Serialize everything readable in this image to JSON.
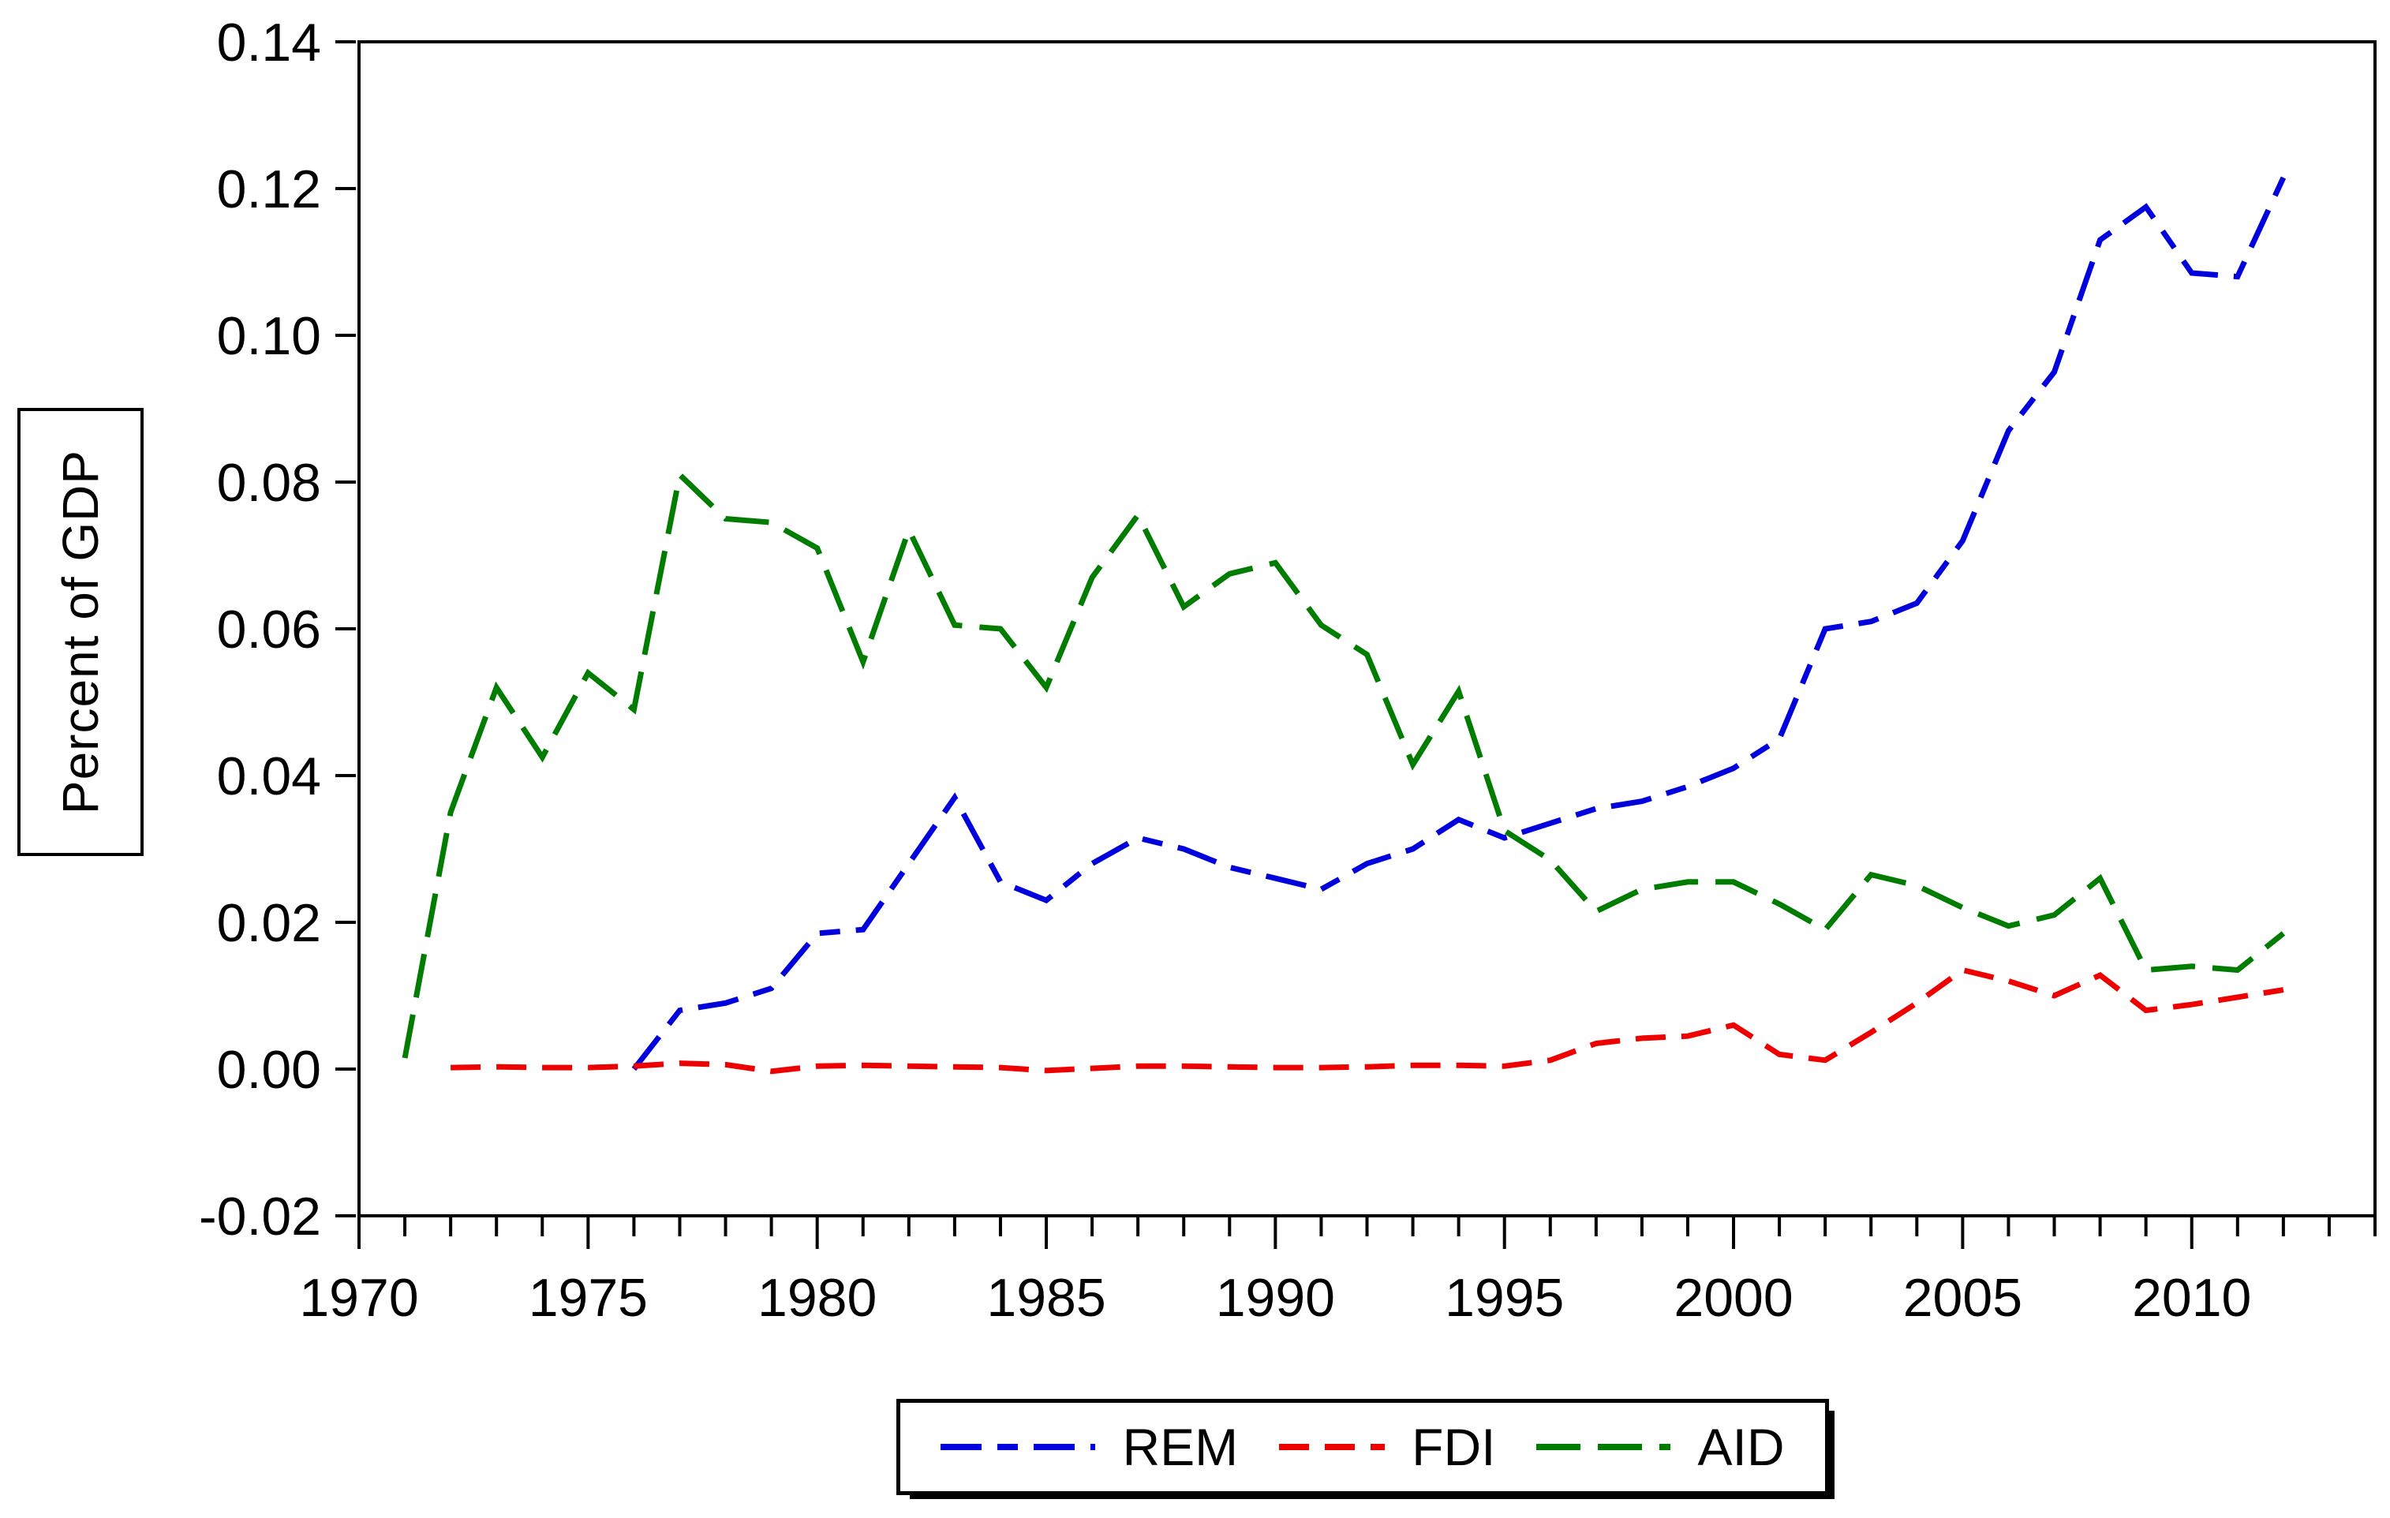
{
  "figure": {
    "background": "#ffffff",
    "frame_color": "#000000"
  },
  "y_axis_title": "Percent of GDP",
  "legend": {
    "position": "bottom",
    "items": [
      {
        "id": "rem",
        "label": "REM",
        "color": "#0000dd"
      },
      {
        "id": "fdi",
        "label": "FDI",
        "color": "#ee0000"
      },
      {
        "id": "aid",
        "label": "AID",
        "color": "#007d00"
      }
    ]
  },
  "chart_data": {
    "type": "line",
    "title": "",
    "xlabel": "",
    "ylabel": "Percent of GDP",
    "xlim": [
      1970,
      2014
    ],
    "ylim": [
      -0.02,
      0.14
    ],
    "grid": false,
    "legend_position": "bottom",
    "x_major_ticks": [
      1970,
      1975,
      1980,
      1985,
      1990,
      1995,
      2000,
      2005,
      2010
    ],
    "x_major_tick_labels": [
      "1970",
      "1975",
      "1980",
      "1985",
      "1990",
      "1995",
      "2000",
      "2005",
      "2010"
    ],
    "x_minor_tick_step": 1,
    "y_ticks": [
      -0.02,
      0.0,
      0.02,
      0.04,
      0.06,
      0.08,
      0.1,
      0.12,
      0.14
    ],
    "y_tick_labels": [
      "-0.02",
      "0.00",
      "0.02",
      "0.04",
      "0.06",
      "0.08",
      "0.10",
      "0.12",
      "0.14"
    ],
    "series": [
      {
        "name": "REM",
        "color": "#0000dd",
        "dash_pattern": [
          52,
          20,
          26,
          20
        ],
        "x_start": 1976,
        "x": [
          1976,
          1977,
          1978,
          1979,
          1980,
          1981,
          1982,
          1983,
          1984,
          1985,
          1986,
          1987,
          1988,
          1989,
          1990,
          1991,
          1992,
          1993,
          1994,
          1995,
          1996,
          1997,
          1998,
          1999,
          2000,
          2001,
          2002,
          2003,
          2004,
          2005,
          2006,
          2007,
          2008,
          2009,
          2010,
          2011,
          2012
        ],
        "y": [
          0.0,
          0.008,
          0.009,
          0.011,
          0.0185,
          0.019,
          0.028,
          0.037,
          0.0255,
          0.023,
          0.028,
          0.0315,
          0.03,
          0.0275,
          0.026,
          0.0245,
          0.028,
          0.03,
          0.034,
          0.0315,
          0.0335,
          0.0355,
          0.0365,
          0.0385,
          0.041,
          0.045,
          0.06,
          0.061,
          0.0635,
          0.072,
          0.087,
          0.095,
          0.113,
          0.1175,
          0.1085,
          0.108,
          0.1215
        ]
      },
      {
        "name": "FDI",
        "color": "#ee0000",
        "dash_pattern": [
          38,
          20
        ],
        "x_start": 1972,
        "x": [
          1972,
          1973,
          1974,
          1975,
          1976,
          1977,
          1978,
          1979,
          1980,
          1981,
          1982,
          1983,
          1984,
          1985,
          1986,
          1987,
          1988,
          1989,
          1990,
          1991,
          1992,
          1993,
          1994,
          1995,
          1996,
          1997,
          1998,
          1999,
          2000,
          2001,
          2002,
          2003,
          2004,
          2005,
          2006,
          2007,
          2008,
          2009,
          2010,
          2011,
          2012
        ],
        "y": [
          0.0002,
          0.0003,
          0.0002,
          0.0002,
          0.0004,
          0.0008,
          0.0006,
          -0.0003,
          0.0004,
          0.0005,
          0.0004,
          0.0003,
          0.0002,
          -0.0002,
          0.0001,
          0.0004,
          0.0004,
          0.0003,
          0.0002,
          0.0002,
          0.0003,
          0.0005,
          0.0005,
          0.0004,
          0.0012,
          0.0035,
          0.0042,
          0.0045,
          0.006,
          0.002,
          0.0012,
          0.005,
          0.009,
          0.0135,
          0.012,
          0.01,
          0.0128,
          0.008,
          0.0088,
          0.0098,
          0.0108
        ]
      },
      {
        "name": "AID",
        "color": "#007d00",
        "dash_pattern": [
          56,
          22
        ],
        "x_start": 1971,
        "x": [
          1971,
          1972,
          1973,
          1974,
          1975,
          1976,
          1977,
          1978,
          1979,
          1980,
          1981,
          1982,
          1983,
          1984,
          1985,
          1986,
          1987,
          1988,
          1989,
          1990,
          1991,
          1992,
          1993,
          1994,
          1995,
          1996,
          1997,
          1998,
          1999,
          2000,
          2001,
          2002,
          2003,
          2004,
          2005,
          2006,
          2007,
          2008,
          2009,
          2010,
          2011,
          2012
        ],
        "y": [
          0.0015,
          0.035,
          0.052,
          0.0425,
          0.054,
          0.049,
          0.081,
          0.075,
          0.0745,
          0.071,
          0.0555,
          0.0735,
          0.0605,
          0.06,
          0.052,
          0.067,
          0.0755,
          0.063,
          0.0675,
          0.069,
          0.0605,
          0.0565,
          0.0415,
          0.0515,
          0.0325,
          0.0285,
          0.0215,
          0.0245,
          0.0255,
          0.0255,
          0.0225,
          0.019,
          0.0265,
          0.025,
          0.022,
          0.0195,
          0.021,
          0.026,
          0.0135,
          0.014,
          0.0135,
          0.0185
        ]
      }
    ]
  }
}
